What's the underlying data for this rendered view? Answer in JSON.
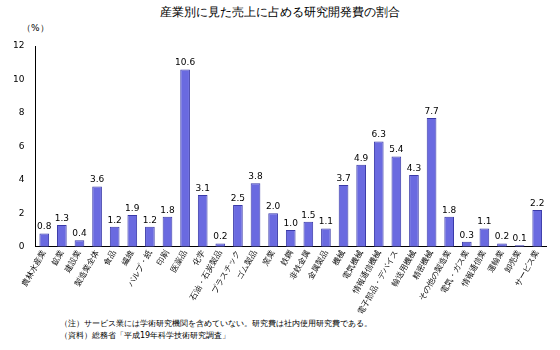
{
  "chart_data": {
    "type": "bar",
    "title": "産業別に見た売上に占める研究開発費の割合",
    "ylabel": "（%）",
    "annotations": [
      "（注）サービス業には学術研究機関を含めていない。研究費は社内使用研究費である。",
      "（資料）総務省「平成19年科学技術研究調査」"
    ],
    "categories": [
      "農林水産業",
      "鉱業",
      "建設業",
      "製造業全体",
      "食品",
      "繊維",
      "パルプ・紙",
      "印刷",
      "医薬品",
      "化学",
      "石油・石炭製品",
      "プラスチック",
      "ゴム製品",
      "窯業",
      "鉄鋼",
      "非鉄金属",
      "金属製品",
      "機械",
      "電気機械",
      "情報通信機械",
      "電子部品・デバイス",
      "輸送用機械",
      "精密機械",
      "その他の製造業",
      "電気・ガス業",
      "情報通信業",
      "運輸業",
      "卸売業",
      "サービス業"
    ],
    "values": [
      0.8,
      1.3,
      0.4,
      3.6,
      1.2,
      1.9,
      1.2,
      1.8,
      10.6,
      3.1,
      0.2,
      2.5,
      3.8,
      2.0,
      1.0,
      1.5,
      1.1,
      3.7,
      4.9,
      6.3,
      5.4,
      4.3,
      7.7,
      1.8,
      0.3,
      1.1,
      0.2,
      0.1,
      2.2
    ],
    "value_labels": [
      "0.8",
      "1.3",
      "0.4",
      "3.6",
      "1.2",
      "1.9",
      "1.2",
      "1.8",
      "10.6",
      "3.1",
      "0.2",
      "2.5",
      "3.8",
      "2.0",
      "1.0",
      "1.5",
      "1.1",
      "3.7",
      "4.9",
      "6.3",
      "5.4",
      "4.3",
      "7.7",
      "1.8",
      "0.3",
      "1.1",
      "0.2",
      "0.1",
      "2.2"
    ],
    "color": "#6a6ae0",
    "ylim": [
      0,
      12
    ],
    "yticks": [
      0,
      2,
      4,
      6,
      8,
      10,
      12
    ],
    "grid": false,
    "data_labels": true
  }
}
